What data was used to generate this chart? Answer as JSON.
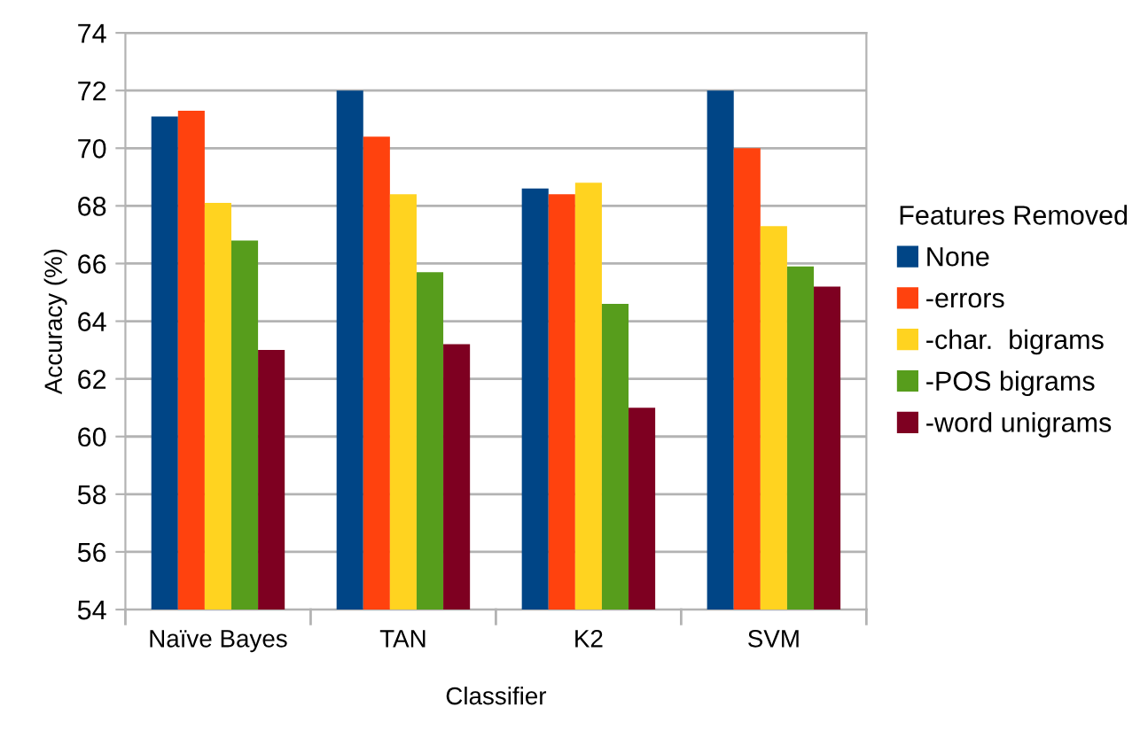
{
  "chart_data": {
    "type": "bar",
    "xlabel": "Classifier",
    "ylabel": "Accuracy (%)",
    "legend_title": "Features Removed",
    "categories": [
      "Naïve Bayes",
      "TAN",
      "K2",
      "SVM"
    ],
    "series": [
      {
        "name": "None",
        "color": "#004586",
        "values": [
          71.1,
          72.0,
          68.6,
          72.0
        ]
      },
      {
        "name": "-errors",
        "color": "#ff420e",
        "values": [
          71.3,
          70.4,
          68.4,
          70.0
        ]
      },
      {
        "name": "-char.  bigrams",
        "color": "#ffd320",
        "values": [
          68.1,
          68.4,
          68.8,
          67.3
        ]
      },
      {
        "name": "-POS bigrams",
        "color": "#579d1c",
        "values": [
          66.8,
          65.7,
          64.6,
          65.9
        ]
      },
      {
        "name": "-word unigrams",
        "color": "#7e0021",
        "values": [
          63.0,
          63.2,
          61.0,
          65.2
        ]
      }
    ],
    "ylim": [
      54,
      74
    ],
    "yticks": [
      54,
      56,
      58,
      60,
      62,
      64,
      66,
      68,
      70,
      72,
      74
    ],
    "grid": "y",
    "legend": "right"
  }
}
